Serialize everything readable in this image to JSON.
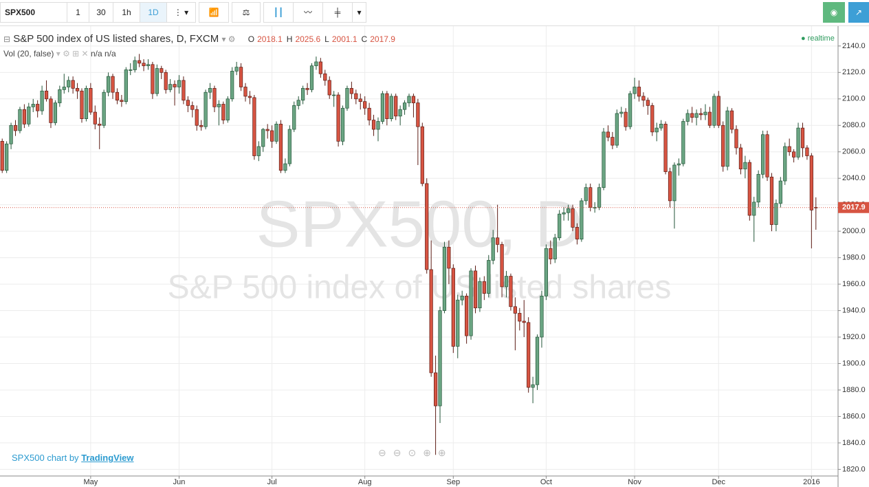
{
  "toolbar": {
    "symbol": "SPX500",
    "intervals": [
      "1",
      "30",
      "1h",
      "1D"
    ]
  },
  "chart_data": {
    "type": "candlestick",
    "title": "S&P 500 index of US listed shares, D, FXCM",
    "ohlc_labels": [
      "O",
      "H",
      "L",
      "C"
    ],
    "indicator": "Vol (20, false)",
    "indicator_values": [
      "n/a",
      "n/a"
    ],
    "status": "realtime",
    "watermark": [
      "SPX500, D",
      "S&P 500 index of US listed shares"
    ],
    "candles": [
      [
        2068,
        2070,
        2044,
        2046
      ],
      [
        2046,
        2068,
        2044,
        2066
      ],
      [
        2066,
        2082,
        2062,
        2080
      ],
      [
        2080,
        2084,
        2072,
        2076
      ],
      [
        2076,
        2094,
        2074,
        2092
      ],
      [
        2092,
        2096,
        2078,
        2081
      ],
      [
        2081,
        2097,
        2079,
        2094
      ],
      [
        2094,
        2100,
        2090,
        2096
      ],
      [
        2096,
        2099,
        2086,
        2091
      ],
      [
        2091,
        2110,
        2088,
        2106
      ],
      [
        2106,
        2114,
        2098,
        2100
      ],
      [
        2100,
        2102,
        2078,
        2082
      ],
      [
        2082,
        2099,
        2080,
        2097
      ],
      [
        2097,
        2110,
        2094,
        2107
      ],
      [
        2107,
        2119,
        2104,
        2109
      ],
      [
        2109,
        2117,
        2105,
        2114
      ],
      [
        2114,
        2117,
        2104,
        2108
      ],
      [
        2108,
        2112,
        2100,
        2106
      ],
      [
        2106,
        2108,
        2082,
        2085
      ],
      [
        2085,
        2110,
        2083,
        2108
      ],
      [
        2108,
        2112,
        2088,
        2090
      ],
      [
        2090,
        2095,
        2077,
        2081
      ],
      [
        2081,
        2086,
        2062,
        2080
      ],
      [
        2080,
        2107,
        2078,
        2105
      ],
      [
        2105,
        2120,
        2102,
        2117
      ],
      [
        2117,
        2119,
        2100,
        2105
      ],
      [
        2105,
        2108,
        2096,
        2099
      ],
      [
        2099,
        2103,
        2094,
        2098
      ],
      [
        2098,
        2124,
        2096,
        2122
      ],
      [
        2122,
        2127,
        2118,
        2122
      ],
      [
        2122,
        2132,
        2120,
        2129
      ],
      [
        2129,
        2134,
        2124,
        2127
      ],
      [
        2127,
        2130,
        2121,
        2125
      ],
      [
        2125,
        2130,
        2122,
        2126
      ],
      [
        2126,
        2128,
        2100,
        2104
      ],
      [
        2104,
        2126,
        2102,
        2123
      ],
      [
        2123,
        2125,
        2115,
        2120
      ],
      [
        2120,
        2122,
        2104,
        2107
      ],
      [
        2107,
        2115,
        2105,
        2111
      ],
      [
        2111,
        2114,
        2095,
        2109
      ],
      [
        2109,
        2118,
        2104,
        2114
      ],
      [
        2114,
        2117,
        2096,
        2099
      ],
      [
        2099,
        2102,
        2090,
        2095
      ],
      [
        2095,
        2098,
        2086,
        2092
      ],
      [
        2092,
        2095,
        2076,
        2080
      ],
      [
        2080,
        2084,
        2076,
        2079
      ],
      [
        2079,
        2107,
        2077,
        2105
      ],
      [
        2105,
        2112,
        2100,
        2108
      ],
      [
        2108,
        2110,
        2090,
        2094
      ],
      [
        2094,
        2099,
        2080,
        2096
      ],
      [
        2096,
        2098,
        2081,
        2084
      ],
      [
        2084,
        2102,
        2082,
        2100
      ],
      [
        2100,
        2124,
        2098,
        2121
      ],
      [
        2121,
        2128,
        2118,
        2124
      ],
      [
        2124,
        2127,
        2106,
        2109
      ],
      [
        2109,
        2112,
        2098,
        2102
      ],
      [
        2102,
        2106,
        2096,
        2101
      ],
      [
        2101,
        2103,
        2054,
        2057
      ],
      [
        2057,
        2068,
        2053,
        2064
      ],
      [
        2064,
        2078,
        2060,
        2077
      ],
      [
        2077,
        2081,
        2070,
        2076
      ],
      [
        2076,
        2080,
        2063,
        2068
      ],
      [
        2068,
        2083,
        2066,
        2081
      ],
      [
        2081,
        2084,
        2044,
        2046
      ],
      [
        2046,
        2055,
        2044,
        2051
      ],
      [
        2051,
        2080,
        2049,
        2077
      ],
      [
        2077,
        2098,
        2075,
        2095
      ],
      [
        2095,
        2102,
        2092,
        2099
      ],
      [
        2099,
        2110,
        2096,
        2108
      ],
      [
        2108,
        2112,
        2103,
        2107
      ],
      [
        2107,
        2127,
        2105,
        2125
      ],
      [
        2125,
        2132,
        2122,
        2128
      ],
      [
        2128,
        2131,
        2116,
        2119
      ],
      [
        2119,
        2122,
        2110,
        2114
      ],
      [
        2114,
        2117,
        2100,
        2103
      ],
      [
        2103,
        2106,
        2094,
        2103
      ],
      [
        2103,
        2105,
        2064,
        2068
      ],
      [
        2068,
        2095,
        2065,
        2093
      ],
      [
        2093,
        2110,
        2091,
        2108
      ],
      [
        2108,
        2113,
        2100,
        2104
      ],
      [
        2104,
        2107,
        2096,
        2100
      ],
      [
        2100,
        2104,
        2092,
        2098
      ],
      [
        2098,
        2102,
        2088,
        2093
      ],
      [
        2093,
        2097,
        2080,
        2084
      ],
      [
        2084,
        2088,
        2072,
        2077
      ],
      [
        2077,
        2086,
        2068,
        2083
      ],
      [
        2083,
        2106,
        2081,
        2104
      ],
      [
        2104,
        2106,
        2080,
        2085
      ],
      [
        2085,
        2104,
        2083,
        2102
      ],
      [
        2102,
        2104,
        2084,
        2087
      ],
      [
        2087,
        2095,
        2080,
        2092
      ],
      [
        2092,
        2099,
        2088,
        2097
      ],
      [
        2097,
        2104,
        2094,
        2102
      ],
      [
        2102,
        2104,
        2086,
        2097
      ],
      [
        2097,
        2100,
        2050,
        2079
      ],
      [
        2079,
        2082,
        2034,
        2036
      ],
      [
        2036,
        2040,
        1968,
        1971
      ],
      [
        1971,
        1993,
        1890,
        1893
      ],
      [
        1893,
        1906,
        1831,
        1868
      ],
      [
        1868,
        1943,
        1855,
        1940
      ],
      [
        1940,
        1992,
        1938,
        1988
      ],
      [
        1988,
        1993,
        1960,
        1972
      ],
      [
        1972,
        1975,
        1908,
        1913
      ],
      [
        1913,
        1952,
        1904,
        1948
      ],
      [
        1948,
        1955,
        1944,
        1951
      ],
      [
        1951,
        1953,
        1915,
        1921
      ],
      [
        1921,
        1972,
        1918,
        1970
      ],
      [
        1970,
        1974,
        1938,
        1942
      ],
      [
        1942,
        1965,
        1939,
        1962
      ],
      [
        1962,
        1966,
        1948,
        1953
      ],
      [
        1953,
        1982,
        1950,
        1978
      ],
      [
        1978,
        2001,
        1975,
        1995
      ],
      [
        1995,
        2020,
        1984,
        1990
      ],
      [
        1990,
        1992,
        1950,
        1958
      ],
      [
        1958,
        1970,
        1950,
        1966
      ],
      [
        1966,
        1968,
        1940,
        1943
      ],
      [
        1943,
        1950,
        1910,
        1938
      ],
      [
        1938,
        1942,
        1925,
        1932
      ],
      [
        1932,
        1948,
        1920,
        1931
      ],
      [
        1931,
        1935,
        1878,
        1882
      ],
      [
        1882,
        1890,
        1870,
        1884
      ],
      [
        1884,
        1922,
        1880,
        1920
      ],
      [
        1920,
        1955,
        1912,
        1951
      ],
      [
        1951,
        1990,
        1948,
        1987
      ],
      [
        1987,
        1993,
        1975,
        1979
      ],
      [
        1979,
        1998,
        1976,
        1995
      ],
      [
        1995,
        2016,
        1993,
        2013
      ],
      [
        2013,
        2018,
        2008,
        2014
      ],
      [
        2014,
        2020,
        2008,
        2017
      ],
      [
        2017,
        2020,
        2000,
        2003
      ],
      [
        2003,
        2006,
        1990,
        1994
      ],
      [
        1994,
        2025,
        1992,
        2023
      ],
      [
        2023,
        2036,
        2020,
        2033
      ],
      [
        2033,
        2036,
        2015,
        2018
      ],
      [
        2018,
        2022,
        2014,
        2018
      ],
      [
        2018,
        2036,
        2016,
        2033
      ],
      [
        2033,
        2078,
        2031,
        2075
      ],
      [
        2075,
        2080,
        2068,
        2071
      ],
      [
        2071,
        2075,
        2062,
        2065
      ],
      [
        2065,
        2092,
        2063,
        2089
      ],
      [
        2089,
        2094,
        2086,
        2090
      ],
      [
        2090,
        2093,
        2076,
        2079
      ],
      [
        2079,
        2106,
        2077,
        2104
      ],
      [
        2104,
        2116,
        2100,
        2109
      ],
      [
        2109,
        2114,
        2098,
        2102
      ],
      [
        2102,
        2105,
        2094,
        2099
      ],
      [
        2099,
        2101,
        2088,
        2095
      ],
      [
        2095,
        2097,
        2072,
        2075
      ],
      [
        2075,
        2082,
        2068,
        2078
      ],
      [
        2078,
        2084,
        2076,
        2081
      ],
      [
        2081,
        2083,
        2043,
        2045
      ],
      [
        2045,
        2048,
        2018,
        2023
      ],
      [
        2023,
        2052,
        2002,
        2050
      ],
      [
        2050,
        2055,
        2042,
        2051
      ],
      [
        2051,
        2085,
        2049,
        2083
      ],
      [
        2083,
        2092,
        2080,
        2089
      ],
      [
        2089,
        2094,
        2082,
        2086
      ],
      [
        2086,
        2092,
        2080,
        2089
      ],
      [
        2089,
        2093,
        2084,
        2088
      ],
      [
        2088,
        2096,
        2084,
        2090
      ],
      [
        2090,
        2094,
        2078,
        2080
      ],
      [
        2080,
        2104,
        2078,
        2102
      ],
      [
        2102,
        2106,
        2078,
        2080
      ],
      [
        2080,
        2083,
        2045,
        2049
      ],
      [
        2049,
        2094,
        2046,
        2091
      ],
      [
        2091,
        2093,
        2074,
        2077
      ],
      [
        2077,
        2080,
        2058,
        2063
      ],
      [
        2063,
        2066,
        2043,
        2047
      ],
      [
        2047,
        2057,
        2040,
        2052
      ],
      [
        2052,
        2054,
        2008,
        2012
      ],
      [
        2012,
        2026,
        1992,
        2022
      ],
      [
        2022,
        2046,
        2018,
        2043
      ],
      [
        2043,
        2076,
        2040,
        2073
      ],
      [
        2073,
        2076,
        2038,
        2041
      ],
      [
        2041,
        2044,
        2000,
        2005
      ],
      [
        2005,
        2024,
        2000,
        2021
      ],
      [
        2021,
        2041,
        2018,
        2038
      ],
      [
        2038,
        2067,
        2035,
        2064
      ],
      [
        2064,
        2070,
        2057,
        2060
      ],
      [
        2060,
        2062,
        2052,
        2056
      ],
      [
        2056,
        2082,
        2054,
        2078
      ],
      [
        2078,
        2082,
        2056,
        2063
      ],
      [
        2063,
        2065,
        2054,
        2057
      ],
      [
        2057,
        2059,
        1987,
        2016
      ],
      [
        2018.1,
        2025.6,
        2001.1,
        2017.9
      ]
    ],
    "xticks": [
      {
        "value": 20,
        "label": "May"
      },
      {
        "value": 40,
        "label": "Jun"
      },
      {
        "value": 61,
        "label": "Jul"
      },
      {
        "value": 82,
        "label": "Aug"
      },
      {
        "value": 102,
        "label": "Sep"
      },
      {
        "value": 123,
        "label": "Oct"
      },
      {
        "value": 143,
        "label": "Nov"
      },
      {
        "value": 162,
        "label": "Dec"
      },
      {
        "value": 183,
        "label": "2016"
      }
    ],
    "ylim": [
      1815,
      2155
    ],
    "yticks": [
      {
        "value": 1820,
        "label": "1820.0"
      },
      {
        "value": 1840,
        "label": "1840.0"
      },
      {
        "value": 1860,
        "label": "1860.0"
      },
      {
        "value": 1880,
        "label": "1880.0"
      },
      {
        "value": 1900,
        "label": "1900.0"
      },
      {
        "value": 1920,
        "label": "1920.0"
      },
      {
        "value": 1940,
        "label": "1940.0"
      },
      {
        "value": 1960,
        "label": "1960.0"
      },
      {
        "value": 1980,
        "label": "1980.0"
      },
      {
        "value": 2000,
        "label": "2000.0"
      },
      {
        "value": 2020,
        "label": "2020.0"
      },
      {
        "value": 2040,
        "label": "2040.0"
      },
      {
        "value": 2060,
        "label": "2060.0"
      },
      {
        "value": 2080,
        "label": "2080.0"
      },
      {
        "value": 2100,
        "label": "2100.0"
      },
      {
        "value": 2120,
        "label": "2120.0"
      },
      {
        "value": 2140,
        "label": "2140.0"
      }
    ],
    "grid": true,
    "up_color": "#6ba583",
    "down_color": "#d75442",
    "up_border": "#225437",
    "down_border": "#5b1a13",
    "price_line_color": "#d75442"
  },
  "footer": {
    "text": "SPX500 chart by",
    "link": "TradingView"
  }
}
